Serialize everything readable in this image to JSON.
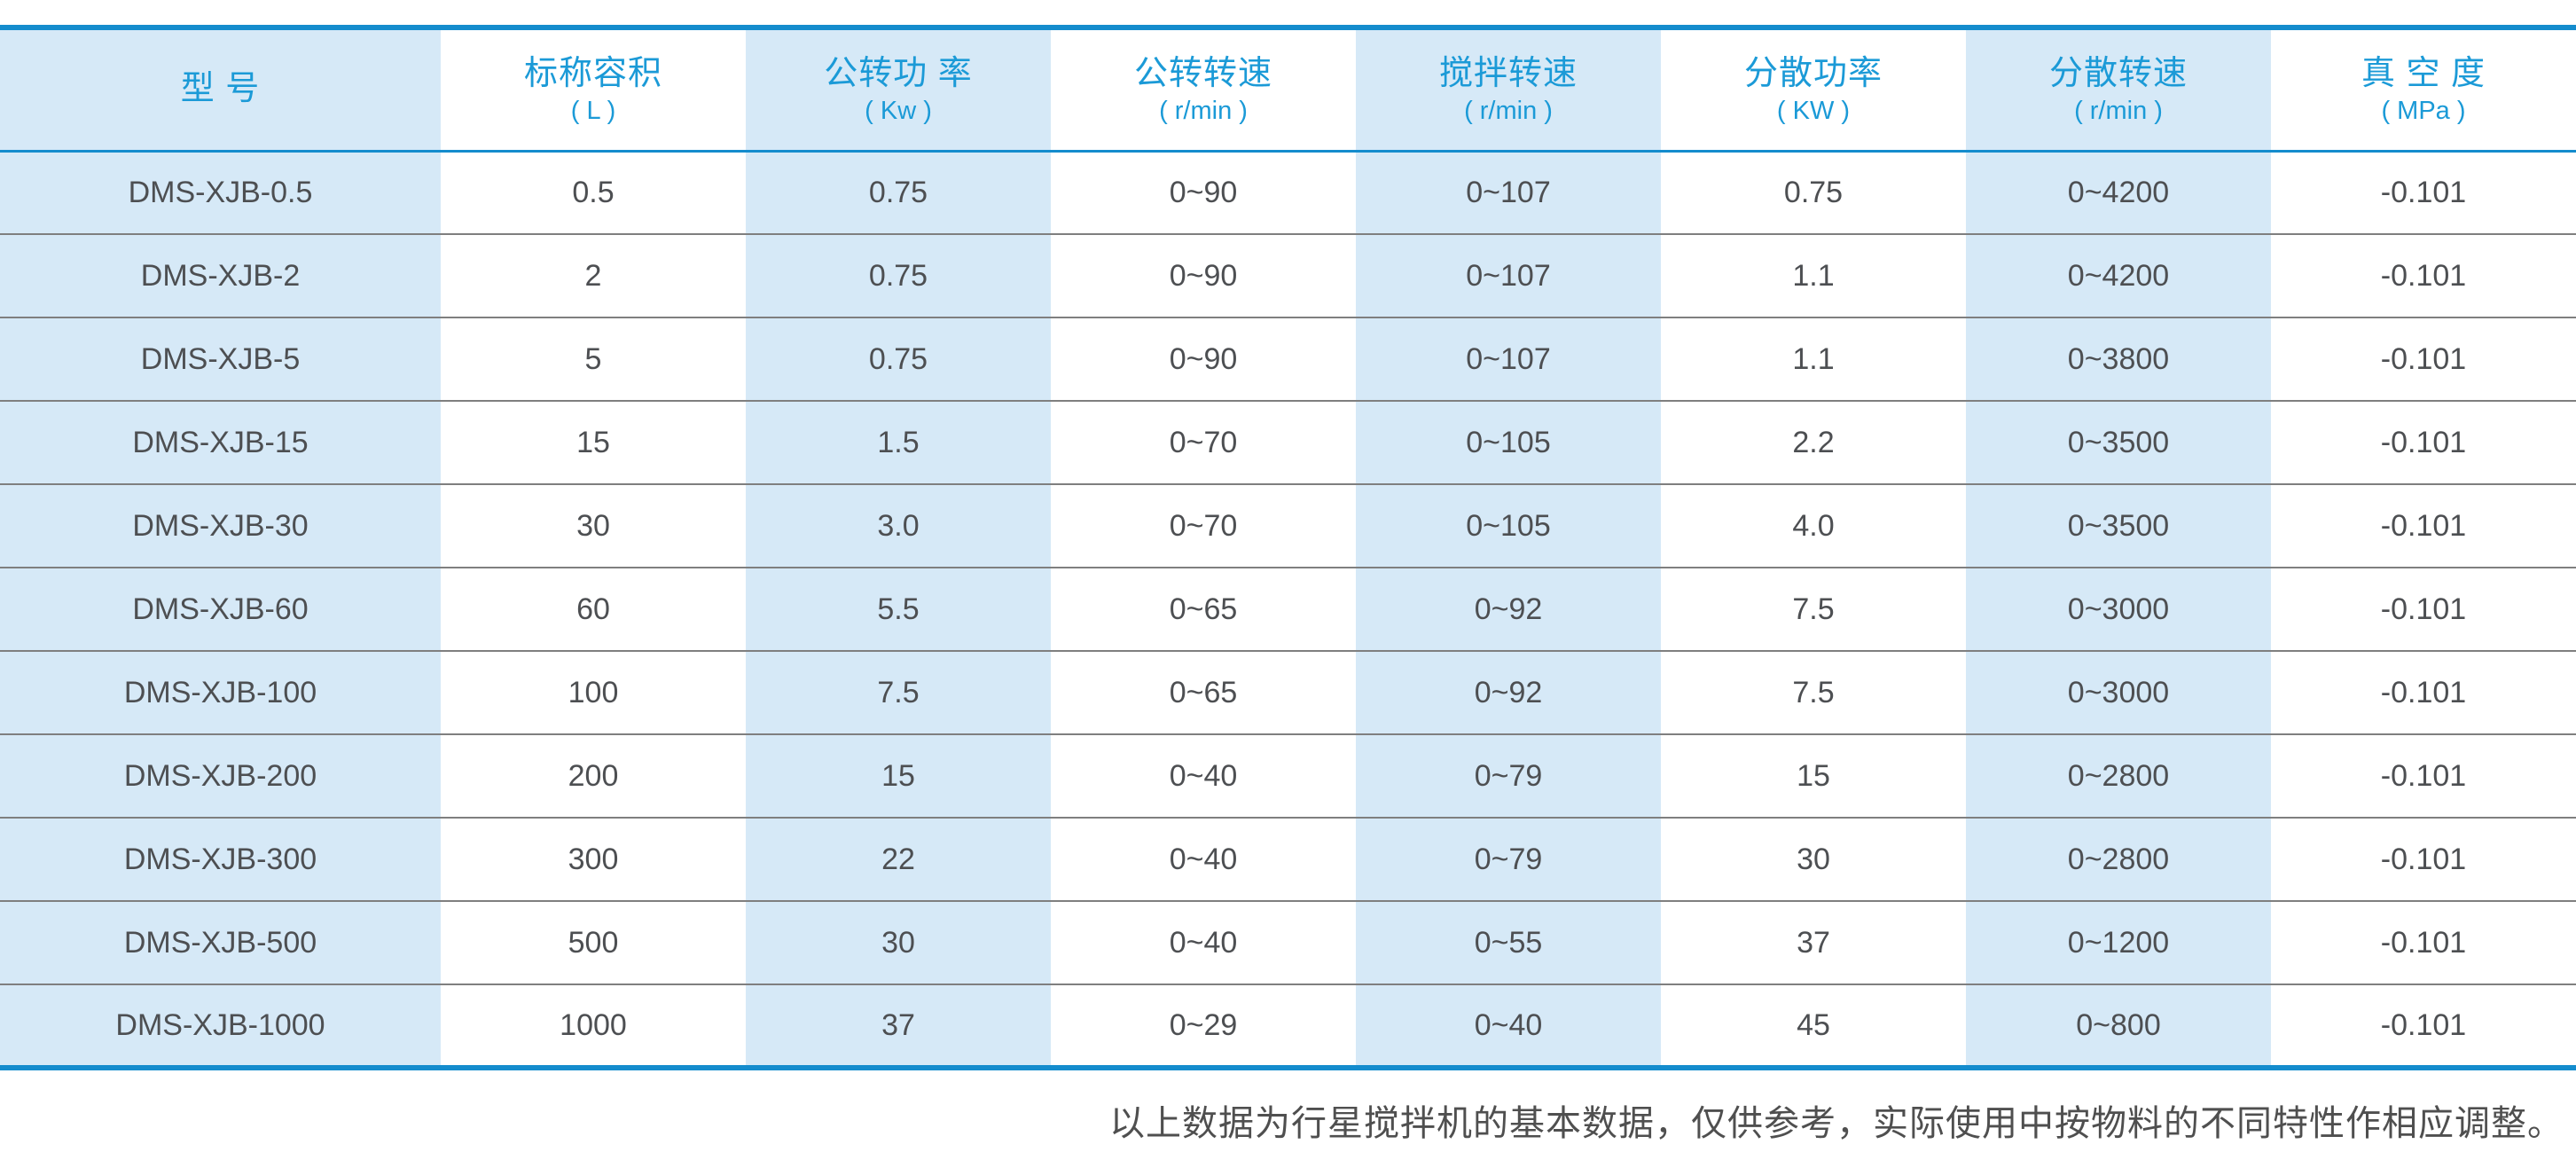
{
  "table": {
    "columns": [
      {
        "title": "型  号",
        "unit": ""
      },
      {
        "title": "标称容积",
        "unit": "( L )"
      },
      {
        "title": "公转功 率",
        "unit": "( Kw )"
      },
      {
        "title": "公转转速",
        "unit": "( r/min )"
      },
      {
        "title": "搅拌转速",
        "unit": "( r/min )"
      },
      {
        "title": "分散功率",
        "unit": "( KW )"
      },
      {
        "title": "分散转速",
        "unit": "( r/min )"
      },
      {
        "title": "真 空 度",
        "unit": "( MPa )"
      }
    ],
    "rows": [
      [
        "DMS-XJB-0.5",
        "0.5",
        "0.75",
        "0~90",
        "0~107",
        "0.75",
        "0~4200",
        "-0.101"
      ],
      [
        "DMS-XJB-2",
        "2",
        "0.75",
        "0~90",
        "0~107",
        "1.1",
        "0~4200",
        "-0.101"
      ],
      [
        "DMS-XJB-5",
        "5",
        "0.75",
        "0~90",
        "0~107",
        "1.1",
        "0~3800",
        "-0.101"
      ],
      [
        "DMS-XJB-15",
        "15",
        "1.5",
        "0~70",
        "0~105",
        "2.2",
        "0~3500",
        "-0.101"
      ],
      [
        "DMS-XJB-30",
        "30",
        "3.0",
        "0~70",
        "0~105",
        "4.0",
        "0~3500",
        "-0.101"
      ],
      [
        "DMS-XJB-60",
        "60",
        "5.5",
        "0~65",
        "0~92",
        "7.5",
        "0~3000",
        "-0.101"
      ],
      [
        "DMS-XJB-100",
        "100",
        "7.5",
        "0~65",
        "0~92",
        "7.5",
        "0~3000",
        "-0.101"
      ],
      [
        "DMS-XJB-200",
        "200",
        "15",
        "0~40",
        "0~79",
        "15",
        "0~2800",
        "-0.101"
      ],
      [
        "DMS-XJB-300",
        "300",
        "22",
        "0~40",
        "0~79",
        "30",
        "0~2800",
        "-0.101"
      ],
      [
        "DMS-XJB-500",
        "500",
        "30",
        "0~40",
        "0~55",
        "37",
        "0~1200",
        "-0.101"
      ],
      [
        "DMS-XJB-1000",
        "1000",
        "37",
        "0~29",
        "0~40",
        "45",
        "0~800",
        "-0.101"
      ]
    ]
  },
  "footer": {
    "note": "以上数据为行星搅拌机的基本数据，仅供参考，实际使用中按物料的不同特性作相应调整。"
  },
  "colors": {
    "accent_line": "#148ccd",
    "header_text": "#1b9ad7",
    "column_stripe": "#d6e9f7",
    "body_text": "#4d4f52"
  }
}
